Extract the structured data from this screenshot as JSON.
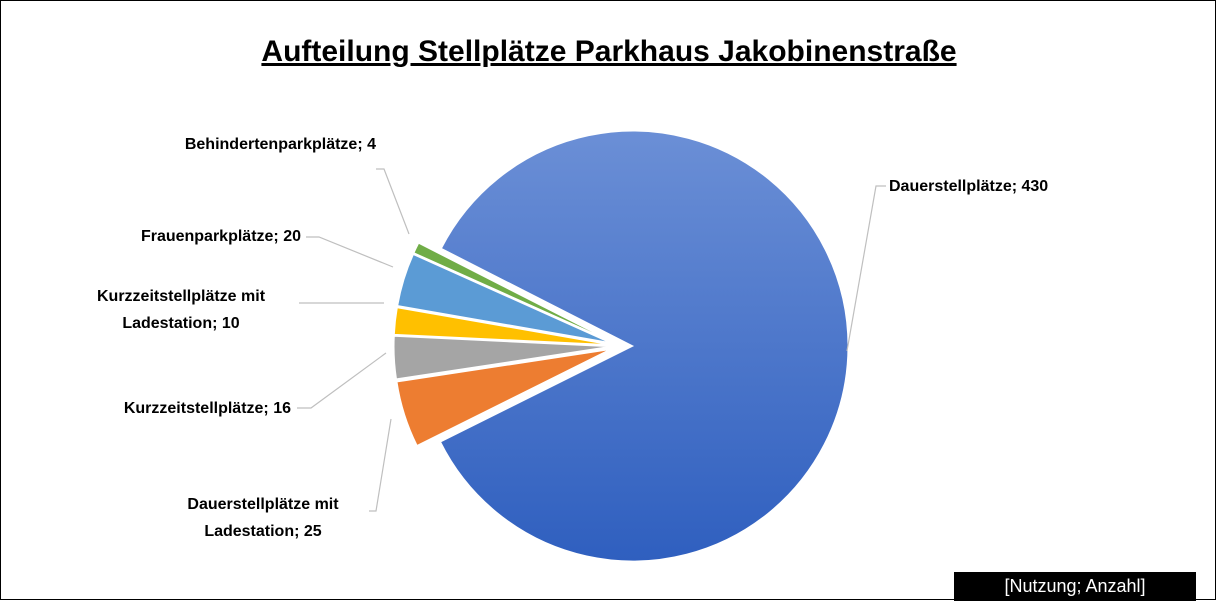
{
  "chart_data": {
    "type": "pie",
    "title": "Aufteilung Stellplätze Parkhaus Jakobinenstraße",
    "values": [
      430,
      25,
      16,
      10,
      20,
      4
    ],
    "value_labels": [
      "Dauerstellplätze; 430",
      "Dauerstellplätze mit Ladestation; 25",
      "Kurzzeitstellplätze; 16",
      "Kurzzeitstellplätze mit Ladestation; 10",
      "Frauenparkplätze; 20",
      "Behindertenparkplätze; 4"
    ],
    "colors": [
      "#4472c4",
      "#ed7d31",
      "#a5a5a5",
      "#ffc000",
      "#5b9bd5",
      "#70ad47"
    ],
    "note": "[Nutzung; Anzahl]"
  }
}
